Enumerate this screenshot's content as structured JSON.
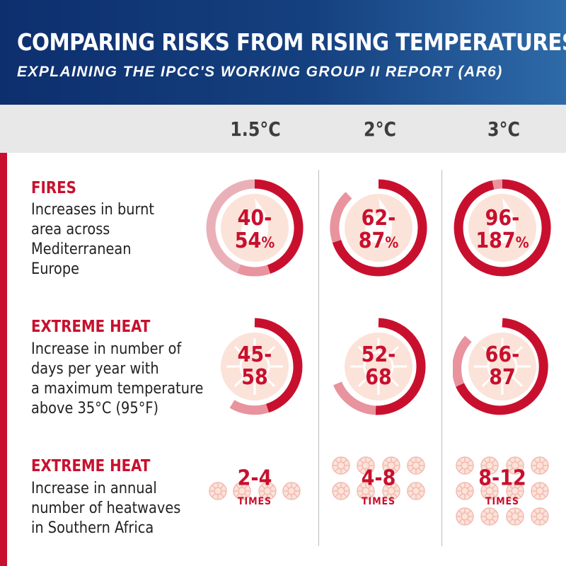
{
  "header": {
    "title": "COMPARING RISKS FROM RISING TEMPERATURES:",
    "subtitle": "EXPLAINING THE IPCC'S WORKING GROUP II REPORT (AR6)"
  },
  "columns": [
    "1.5°C",
    "2°C",
    "3°C"
  ],
  "colors": {
    "accent": "#c8102e",
    "light_ring": "#e8939e",
    "header_blue": "#15407f",
    "icon_fill": "#fbe3d9"
  },
  "rows": [
    {
      "title": "FIRES",
      "description": [
        "Increases in burnt",
        "area across",
        "Mediterranean",
        "Europe"
      ],
      "icon": "flame-icon",
      "cells": [
        {
          "line1": "40-",
          "line2": "54",
          "unit": "%"
        },
        {
          "line1": "62-",
          "line2": "87",
          "unit": "%"
        },
        {
          "line1": "96-",
          "line2": "187",
          "unit": "%"
        }
      ]
    },
    {
      "title": "EXTREME HEAT",
      "description": [
        "Increase in number of",
        "days per year with",
        "a maximum temperature",
        "above 35°C (95°F)"
      ],
      "icon": "sun-icon",
      "cells": [
        {
          "line1": "45-",
          "line2": "58"
        },
        {
          "line1": "52-",
          "line2": "68"
        },
        {
          "line1": "66-",
          "line2": "87"
        }
      ]
    },
    {
      "title": "EXTREME HEAT",
      "description": [
        "Increase in annual",
        "number of heatwaves",
        "in Southern Africa"
      ],
      "icon": "sun-icon",
      "cells": [
        {
          "value": "2-4",
          "unit_label": "TIMES"
        },
        {
          "value": "4-8",
          "unit_label": "TIMES"
        },
        {
          "value": "8-12",
          "unit_label": "TIMES"
        }
      ]
    }
  ]
}
